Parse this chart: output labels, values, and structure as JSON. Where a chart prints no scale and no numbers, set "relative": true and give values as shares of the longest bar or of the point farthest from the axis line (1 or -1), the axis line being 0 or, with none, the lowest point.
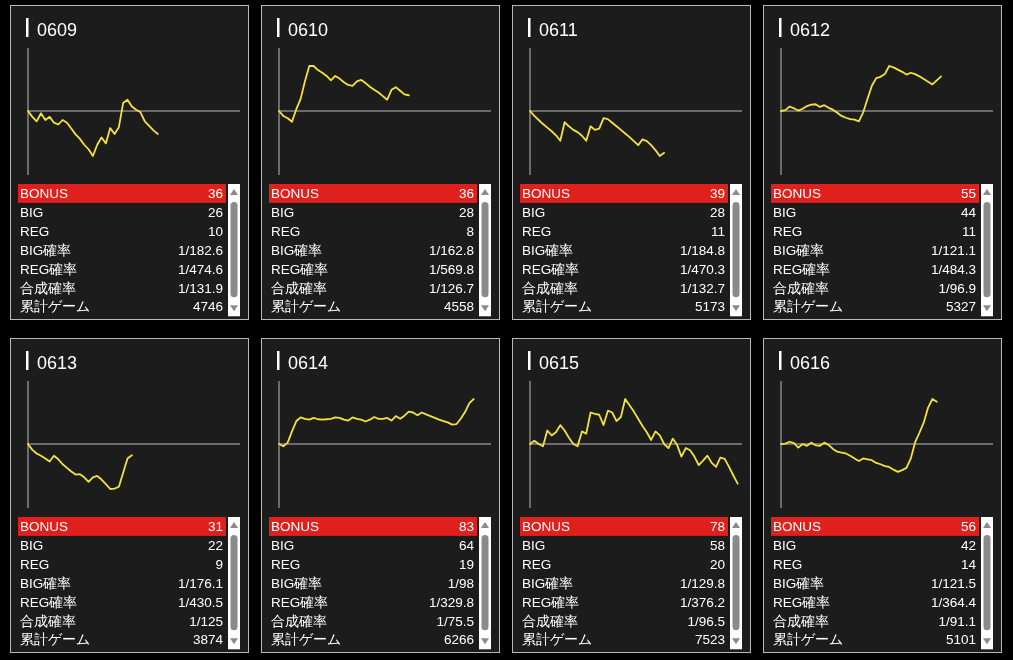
{
  "chart_data": [
    {
      "type": "line",
      "title": "0609",
      "relative": true,
      "categories": [
        null,
        null,
        null,
        null,
        null,
        null,
        null,
        null,
        null,
        null,
        null,
        null,
        null,
        null,
        null,
        null,
        null,
        null,
        null,
        null,
        null,
        null,
        null,
        null,
        null,
        null,
        null,
        null,
        null,
        null,
        null,
        null,
        null,
        null,
        null,
        null,
        null,
        null,
        null,
        null,
        null,
        null,
        null,
        null,
        null,
        null,
        null,
        null,
        null,
        null
      ],
      "series": [
        {
          "color": "#f2e33a",
          "values": [
            0,
            -0.13,
            -0.23,
            -0.05,
            -0.2,
            -0.13,
            -0.26,
            -0.3,
            -0.2,
            -0.26,
            -0.39,
            -0.52,
            -0.62,
            -0.75,
            -0.85,
            -1,
            -0.75,
            -0.59,
            -0.72,
            -0.38,
            -0.51,
            -0.36,
            0.18,
            0.25,
            0.1,
            0.03,
            -0.03,
            -0.23,
            -0.33,
            -0.43,
            -0.51,
            null,
            null,
            null,
            null,
            null,
            null,
            null,
            null,
            null,
            null,
            null,
            null,
            null,
            null,
            null,
            null,
            null,
            null,
            null
          ]
        }
      ]
    },
    {
      "type": "other",
      "categories": [
        "BONUS",
        "BIG",
        "REG",
        "BIG確率",
        "REG確率",
        "合成確率",
        "累計ゲーム"
      ],
      "value_labels": [
        "36",
        "26",
        "10",
        "1/182.6",
        "1/474.6",
        "1/131.9",
        "4746"
      ],
      "colors": [
        "#e0201c",
        null,
        null,
        null,
        null,
        null,
        null
      ]
    },
    {
      "type": "line",
      "title": "0610",
      "relative": true,
      "categories": [
        null,
        null,
        null,
        null,
        null,
        null,
        null,
        null,
        null,
        null,
        null,
        null,
        null,
        null,
        null,
        null,
        null,
        null,
        null,
        null,
        null,
        null,
        null,
        null,
        null,
        null,
        null,
        null,
        null,
        null,
        null,
        null,
        null,
        null,
        null,
        null,
        null,
        null,
        null,
        null,
        null,
        null,
        null,
        null,
        null,
        null,
        null,
        null,
        null,
        null
      ],
      "series": [
        {
          "color": "#f2e33a",
          "values": [
            0,
            -0.11,
            -0.16,
            -0.24,
            0.04,
            0.27,
            0.66,
            1,
            1,
            0.91,
            0.85,
            0.78,
            0.68,
            0.78,
            0.72,
            0.64,
            0.58,
            0.56,
            0.66,
            0.69,
            0.62,
            0.54,
            0.47,
            0.41,
            0.33,
            0.25,
            0.47,
            0.53,
            0.45,
            0.37,
            0.35,
            null,
            null,
            null,
            null,
            null,
            null,
            null,
            null,
            null,
            null,
            null,
            null,
            null,
            null,
            null,
            null,
            null,
            null,
            null
          ]
        }
      ]
    },
    {
      "type": "other",
      "categories": [
        "BONUS",
        "BIG",
        "REG",
        "BIG確率",
        "REG確率",
        "合成確率",
        "累計ゲーム"
      ],
      "value_labels": [
        "36",
        "28",
        "8",
        "1/162.8",
        "1/569.8",
        "1/126.7",
        "4558"
      ],
      "colors": [
        "#e0201c",
        null,
        null,
        null,
        null,
        null,
        null
      ]
    },
    {
      "type": "line",
      "title": "0611",
      "relative": true,
      "categories": [
        null,
        null,
        null,
        null,
        null,
        null,
        null,
        null,
        null,
        null,
        null,
        null,
        null,
        null,
        null,
        null,
        null,
        null,
        null,
        null,
        null,
        null,
        null,
        null,
        null,
        null,
        null,
        null,
        null,
        null,
        null,
        null,
        null,
        null,
        null,
        null,
        null,
        null,
        null,
        null,
        null,
        null,
        null,
        null,
        null,
        null,
        null,
        null,
        null,
        null
      ],
      "series": [
        {
          "color": "#f2e33a",
          "values": [
            0,
            -0.11,
            -0.2,
            -0.29,
            -0.37,
            -0.45,
            -0.54,
            -0.66,
            -0.25,
            -0.34,
            -0.42,
            -0.47,
            -0.55,
            -0.66,
            -0.34,
            -0.42,
            -0.39,
            -0.16,
            -0.18,
            -0.26,
            -0.34,
            -0.42,
            -0.5,
            -0.58,
            -0.67,
            -0.76,
            -0.63,
            -0.67,
            -0.76,
            -0.87,
            -1,
            -0.93,
            null,
            null,
            null,
            null,
            null,
            null,
            null,
            null,
            null,
            null,
            null,
            null,
            null,
            null,
            null,
            null,
            null,
            null
          ]
        }
      ]
    },
    {
      "type": "other",
      "categories": [
        "BONUS",
        "BIG",
        "REG",
        "BIG確率",
        "REG確率",
        "合成確率",
        "累計ゲーム"
      ],
      "value_labels": [
        "39",
        "28",
        "11",
        "1/184.8",
        "1/470.3",
        "1/132.7",
        "5173"
      ],
      "colors": [
        "#e0201c",
        null,
        null,
        null,
        null,
        null,
        null
      ]
    },
    {
      "type": "line",
      "title": "0612",
      "relative": true,
      "categories": [
        null,
        null,
        null,
        null,
        null,
        null,
        null,
        null,
        null,
        null,
        null,
        null,
        null,
        null,
        null,
        null,
        null,
        null,
        null,
        null,
        null,
        null,
        null,
        null,
        null,
        null,
        null,
        null,
        null,
        null,
        null,
        null,
        null,
        null,
        null,
        null,
        null,
        null,
        null,
        null,
        null,
        null,
        null,
        null,
        null,
        null,
        null,
        null,
        null,
        null
      ],
      "series": [
        {
          "color": "#f2e33a",
          "values": [
            0,
            0.02,
            0.1,
            0.06,
            0.01,
            0.05,
            0.11,
            0.14,
            0.15,
            0.09,
            0.13,
            0.07,
            0.03,
            -0.04,
            -0.11,
            -0.15,
            -0.18,
            -0.19,
            -0.23,
            -0.03,
            0.27,
            0.56,
            0.73,
            0.76,
            0.82,
            1,
            0.97,
            0.92,
            0.87,
            0.81,
            0.85,
            0.82,
            0.77,
            0.71,
            0.65,
            0.59,
            0.68,
            0.77,
            null,
            null,
            null,
            null,
            null,
            null,
            null,
            null,
            null,
            null,
            null,
            null
          ]
        }
      ]
    },
    {
      "type": "other",
      "categories": [
        "BONUS",
        "BIG",
        "REG",
        "BIG確率",
        "REG確率",
        "合成確率",
        "累計ゲーム"
      ],
      "value_labels": [
        "55",
        "44",
        "11",
        "1/121.1",
        "1/484.3",
        "1/96.9",
        "5327"
      ],
      "colors": [
        "#e0201c",
        null,
        null,
        null,
        null,
        null,
        null
      ]
    },
    {
      "type": "line",
      "title": "0613",
      "relative": true,
      "categories": [
        null,
        null,
        null,
        null,
        null,
        null,
        null,
        null,
        null,
        null,
        null,
        null,
        null,
        null,
        null,
        null,
        null,
        null,
        null,
        null,
        null,
        null,
        null,
        null,
        null,
        null,
        null,
        null,
        null,
        null,
        null,
        null,
        null,
        null,
        null,
        null,
        null,
        null,
        null,
        null,
        null,
        null,
        null,
        null,
        null,
        null,
        null,
        null,
        null,
        null
      ],
      "series": [
        {
          "color": "#f2e33a",
          "values": [
            0,
            -0.13,
            -0.21,
            -0.26,
            -0.32,
            -0.39,
            -0.26,
            -0.34,
            -0.45,
            -0.53,
            -0.61,
            -0.68,
            -0.67,
            -0.74,
            -0.84,
            -0.74,
            -0.71,
            -0.79,
            -0.89,
            -1,
            -0.99,
            -0.95,
            -0.64,
            -0.32,
            -0.25,
            null,
            null,
            null,
            null,
            null,
            null,
            null,
            null,
            null,
            null,
            null,
            null,
            null,
            null,
            null,
            null,
            null,
            null,
            null,
            null,
            null,
            null,
            null,
            null,
            null
          ]
        }
      ]
    },
    {
      "type": "other",
      "categories": [
        "BONUS",
        "BIG",
        "REG",
        "BIG確率",
        "REG確率",
        "合成確率",
        "累計ゲーム"
      ],
      "value_labels": [
        "31",
        "22",
        "9",
        "1/176.1",
        "1/430.5",
        "1/125",
        "3874"
      ],
      "colors": [
        "#e0201c",
        null,
        null,
        null,
        null,
        null,
        null
      ]
    },
    {
      "type": "line",
      "title": "0614",
      "relative": true,
      "categories": [
        null,
        null,
        null,
        null,
        null,
        null,
        null,
        null,
        null,
        null,
        null,
        null,
        null,
        null,
        null,
        null,
        null,
        null,
        null,
        null,
        null,
        null,
        null,
        null,
        null,
        null,
        null,
        null,
        null,
        null,
        null,
        null,
        null,
        null,
        null,
        null,
        null,
        null,
        null,
        null,
        null,
        null,
        null,
        null,
        null,
        null,
        null,
        null,
        null,
        null
      ],
      "series": [
        {
          "color": "#f2e33a",
          "values": [
            0,
            -0.05,
            0.03,
            0.28,
            0.51,
            0.59,
            0.56,
            0.54,
            0.58,
            0.55,
            0.54,
            0.55,
            0.56,
            0.59,
            0.58,
            0.54,
            0.52,
            0.59,
            0.56,
            0.54,
            0.5,
            0.54,
            0.6,
            0.56,
            0.56,
            0.58,
            0.52,
            0.62,
            0.56,
            0.63,
            0.72,
            0.7,
            0.64,
            0.7,
            0.66,
            0.62,
            0.58,
            0.54,
            0.51,
            0.48,
            0.43,
            0.44,
            0.56,
            0.71,
            0.91,
            1,
            null,
            null,
            null,
            null
          ]
        }
      ]
    },
    {
      "type": "other",
      "categories": [
        "BONUS",
        "BIG",
        "REG",
        "BIG確率",
        "REG確率",
        "合成確率",
        "累計ゲーム"
      ],
      "value_labels": [
        "83",
        "64",
        "19",
        "1/98",
        "1/329.8",
        "1/75.5",
        "6266"
      ],
      "colors": [
        "#e0201c",
        null,
        null,
        null,
        null,
        null,
        null
      ]
    },
    {
      "type": "line",
      "title": "0615",
      "relative": true,
      "categories": [
        null,
        null,
        null,
        null,
        null,
        null,
        null,
        null,
        null,
        null,
        null,
        null,
        null,
        null,
        null,
        null,
        null,
        null,
        null,
        null,
        null,
        null,
        null,
        null,
        null,
        null,
        null,
        null,
        null,
        null,
        null,
        null,
        null,
        null,
        null,
        null,
        null,
        null,
        null,
        null,
        null,
        null,
        null,
        null,
        null,
        null,
        null,
        null,
        null,
        null
      ],
      "series": [
        {
          "color": "#f2e33a",
          "values": [
            0,
            0.07,
            0,
            -0.05,
            0.3,
            0.19,
            0.26,
            0.42,
            0.3,
            0.14,
            0,
            -0.05,
            0.28,
            0.23,
            0.7,
            0.67,
            0.65,
            0.42,
            0.74,
            0.7,
            0.51,
            0.6,
            1,
            0.86,
            0.72,
            0.56,
            0.4,
            0.26,
            0.09,
            0.28,
            0.19,
            0,
            -0.09,
            0.12,
            -0.02,
            -0.28,
            -0.09,
            -0.14,
            -0.28,
            -0.47,
            -0.37,
            -0.26,
            -0.42,
            -0.51,
            -0.3,
            -0.33,
            -0.51,
            -0.7,
            -0.88,
            null
          ]
        }
      ]
    },
    {
      "type": "other",
      "categories": [
        "BONUS",
        "BIG",
        "REG",
        "BIG確率",
        "REG確率",
        "合成確率",
        "累計ゲーム"
      ],
      "value_labels": [
        "78",
        "58",
        "20",
        "1/129.8",
        "1/376.2",
        "1/96.5",
        "7523"
      ],
      "colors": [
        "#e0201c",
        null,
        null,
        null,
        null,
        null,
        null
      ]
    },
    {
      "type": "line",
      "title": "0616",
      "relative": true,
      "categories": [
        null,
        null,
        null,
        null,
        null,
        null,
        null,
        null,
        null,
        null,
        null,
        null,
        null,
        null,
        null,
        null,
        null,
        null,
        null,
        null,
        null,
        null,
        null,
        null,
        null,
        null,
        null,
        null,
        null,
        null,
        null,
        null,
        null,
        null,
        null,
        null,
        null,
        null,
        null,
        null,
        null,
        null,
        null,
        null,
        null,
        null,
        null,
        null,
        null,
        null
      ],
      "series": [
        {
          "color": "#f2e33a",
          "values": [
            0,
            0.01,
            0.05,
            0.02,
            -0.08,
            0,
            -0.04,
            0.03,
            -0.03,
            -0.04,
            0.03,
            -0.02,
            -0.11,
            -0.17,
            -0.19,
            -0.21,
            -0.26,
            -0.32,
            -0.38,
            -0.32,
            -0.34,
            -0.36,
            -0.42,
            -0.45,
            -0.49,
            -0.51,
            -0.57,
            -0.62,
            -0.58,
            -0.53,
            -0.32,
            0.04,
            0.25,
            0.48,
            0.81,
            1,
            0.94,
            null,
            null,
            null,
            null,
            null,
            null,
            null,
            null,
            null,
            null,
            null,
            null,
            null
          ]
        }
      ]
    },
    {
      "type": "other",
      "categories": [
        "BONUS",
        "BIG",
        "REG",
        "BIG確率",
        "REG確率",
        "合成確率",
        "累計ゲーム"
      ],
      "value_labels": [
        "56",
        "42",
        "14",
        "1/121.5",
        "1/364.4",
        "1/91.1",
        "5101"
      ],
      "colors": [
        "#e0201c",
        null,
        null,
        null,
        null,
        null,
        null
      ]
    }
  ]
}
